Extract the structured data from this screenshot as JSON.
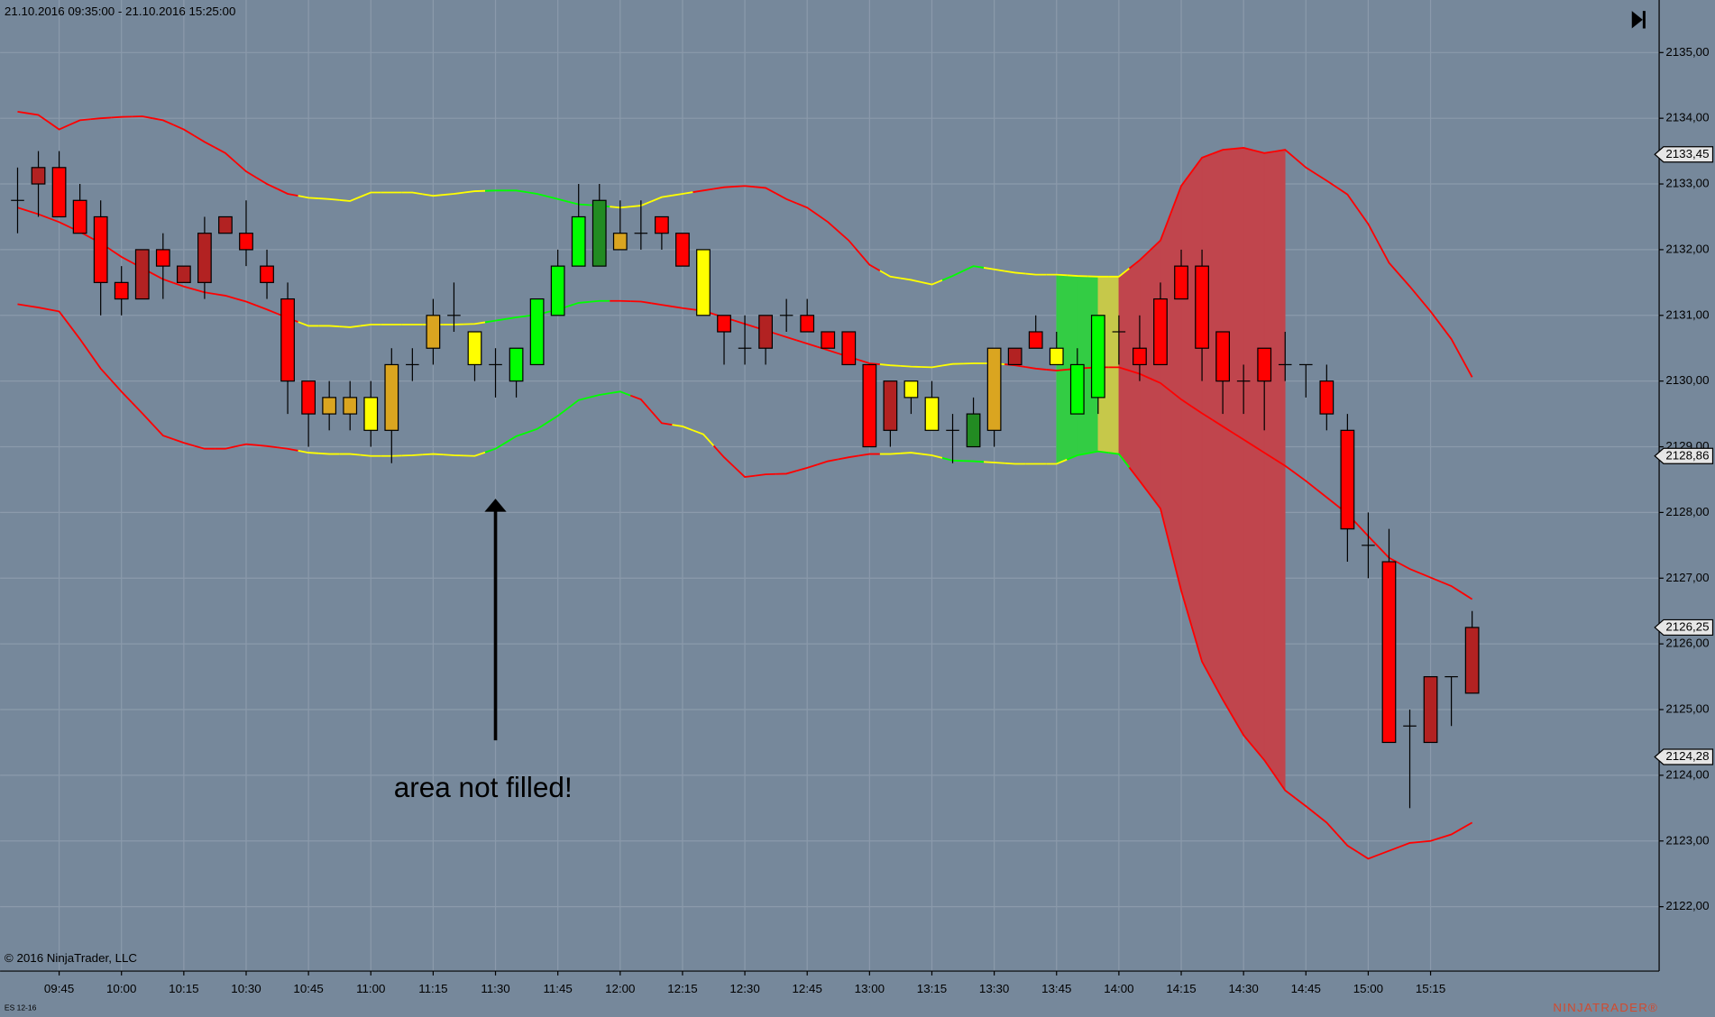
{
  "chart_data": {
    "type": "candlestick",
    "title": "21.10.2016 09:35:00 - 21.10.2016 15:25:00",
    "categories": [
      null,
      null,
      "09:45",
      null,
      null,
      "10:00",
      null,
      null,
      "10:15",
      null,
      null,
      "10:30",
      null,
      null,
      "10:45",
      null,
      null,
      "11:00",
      null,
      null,
      "11:15",
      null,
      null,
      "11:30",
      null,
      null,
      "11:45",
      null,
      null,
      "12:00",
      null,
      null,
      "12:15",
      null,
      null,
      "12:30",
      null,
      null,
      "12:45",
      null,
      null,
      "13:00",
      null,
      null,
      "13:15",
      null,
      null,
      "13:30",
      null,
      null,
      "13:45",
      null,
      null,
      "14:00",
      null,
      null,
      "14:15",
      null,
      null,
      "14:30",
      null,
      null,
      "14:45",
      null,
      null,
      "15:00",
      null,
      null,
      "15:15",
      null,
      null
    ],
    "open": [
      2132.75,
      2133.25,
      2133.25,
      2132.75,
      2132.5,
      2131.5,
      2132.0,
      2132.0,
      2131.75,
      2132.25,
      2132.5,
      2132.25,
      2131.75,
      2131.25,
      2130.0,
      2129.75,
      2129.5,
      2129.75,
      2129.25,
      2130.25,
      2130.5,
      2131.0,
      2130.75,
      2130.25,
      2130.0,
      2130.25,
      2131.0,
      2131.75,
      2131.75,
      2132.25,
      2132.25,
      2132.5,
      2132.25,
      2132.0,
      2131.0,
      2130.5,
      2131.0,
      2131.0,
      2131.0,
      2130.75,
      2130.75,
      2130.25,
      2130.0,
      2130.0,
      2129.75,
      2129.25,
      2129.0,
      2129.25,
      2130.5,
      2130.75,
      2130.5,
      2129.5,
      2129.75,
      2130.75,
      2130.5,
      2131.25,
      2131.75,
      2131.75,
      2130.75,
      2130.0,
      2130.5,
      2130.25,
      2130.25,
      2130.0,
      2129.25,
      2127.5,
      2127.25,
      2124.75,
      2125.5,
      2125.5,
      2126.25
    ],
    "high": [
      2133.25,
      2133.5,
      2133.5,
      2133.0,
      2132.75,
      2131.75,
      2132.0,
      2132.25,
      2131.75,
      2132.5,
      2132.5,
      2132.75,
      2132.0,
      2131.5,
      2130.0,
      2130.0,
      2130.0,
      2130.0,
      2130.5,
      2130.5,
      2131.25,
      2131.5,
      2130.75,
      2130.5,
      2130.5,
      2131.25,
      2132.0,
      2133.0,
      2133.0,
      2132.75,
      2132.75,
      2132.5,
      2132.25,
      2132.0,
      2131.0,
      2131.0,
      2131.0,
      2131.25,
      2131.25,
      2130.75,
      2130.75,
      2130.25,
      2130.0,
      2130.0,
      2130.0,
      2129.5,
      2129.75,
      2130.5,
      2130.5,
      2131.0,
      2130.75,
      2130.5,
      2131.0,
      2131.0,
      2131.0,
      2131.5,
      2132.0,
      2132.0,
      2130.75,
      2130.25,
      2130.5,
      2130.75,
      2130.25,
      2130.25,
      2129.5,
      2128.0,
      2127.75,
      2125.0,
      2125.5,
      2125.5,
      2126.5
    ],
    "low": [
      2132.25,
      2132.5,
      2132.5,
      2132.25,
      2131.0,
      2131.0,
      2131.25,
      2131.25,
      2131.5,
      2131.25,
      2132.25,
      2131.75,
      2131.25,
      2129.5,
      2129.0,
      2129.25,
      2129.25,
      2129.0,
      2128.75,
      2130.0,
      2130.25,
      2130.75,
      2130.0,
      2129.75,
      2129.75,
      2130.25,
      2131.0,
      2131.75,
      2131.75,
      2132.0,
      2132.0,
      2132.0,
      2131.75,
      2131.0,
      2130.25,
      2130.25,
      2130.25,
      2130.75,
      2130.75,
      2130.5,
      2130.25,
      2129.0,
      2129.0,
      2129.5,
      2129.25,
      2128.75,
      2129.0,
      2129.0,
      2130.25,
      2130.5,
      2130.25,
      2129.5,
      2129.5,
      2130.25,
      2130.0,
      2130.25,
      2131.25,
      2130.0,
      2129.5,
      2129.5,
      2129.25,
      2130.0,
      2129.75,
      2129.25,
      2127.25,
      2127.0,
      2124.5,
      2123.5,
      2124.5,
      2124.75,
      2125.25
    ],
    "close": [
      2132.75,
      2133.0,
      2132.5,
      2132.25,
      2131.5,
      2131.25,
      2131.25,
      2131.75,
      2131.5,
      2131.5,
      2132.25,
      2132.0,
      2131.5,
      2130.0,
      2129.5,
      2129.5,
      2129.75,
      2129.25,
      2130.25,
      2130.25,
      2131.0,
      2131.0,
      2130.25,
      2130.25,
      2130.5,
      2131.25,
      2131.75,
      2132.5,
      2132.75,
      2132.0,
      2132.25,
      2132.25,
      2131.75,
      2131.0,
      2130.75,
      2130.5,
      2130.5,
      2131.0,
      2130.75,
      2130.5,
      2130.25,
      2129.0,
      2129.25,
      2129.75,
      2129.25,
      2129.25,
      2129.5,
      2130.5,
      2130.25,
      2130.5,
      2130.25,
      2130.25,
      2131.0,
      2130.75,
      2130.25,
      2130.25,
      2131.25,
      2130.5,
      2130.0,
      2130.0,
      2130.0,
      2130.25,
      2130.25,
      2129.5,
      2127.75,
      2127.5,
      2124.5,
      2124.75,
      2124.5,
      2125.5,
      2125.25
    ],
    "colors": [
      "#000000",
      "#b22222",
      "#ff0000",
      "#ff0000",
      "#ff0000",
      "#ff0000",
      "#b22222",
      "#ff0000",
      "#b22222",
      "#b22222",
      "#b22222",
      "#ff0000",
      "#ff0000",
      "#ff0000",
      "#ff0000",
      "#daa520",
      "#daa520",
      "#ffff00",
      "#daa520",
      "#000000",
      "#daa520",
      "#000000",
      "#ffff00",
      "#000000",
      "#00ff00",
      "#00ff00",
      "#00ff00",
      "#00ff00",
      "#228b22",
      "#daa520",
      "#000000",
      "#ff0000",
      "#ff0000",
      "#ffff00",
      "#ff0000",
      "#000000",
      "#b22222",
      "#000000",
      "#ff0000",
      "#ff0000",
      "#ff0000",
      "#ff0000",
      "#b22222",
      "#ffff00",
      "#ffff00",
      "#000000",
      "#228b22",
      "#daa520",
      "#b22222",
      "#ff0000",
      "#ffff00",
      "#00ff00",
      "#00ff00",
      "#000000",
      "#ff0000",
      "#ff0000",
      "#ff0000",
      "#ff0000",
      "#ff0000",
      "#000000",
      "#ff0000",
      "#000000",
      "#000000",
      "#ff0000",
      "#ff0000",
      "#000000",
      "#ff0000",
      "#000000",
      "#b22222",
      "#000000",
      "#b22222"
    ],
    "bands": [
      {
        "values": [
          2134.1,
          2134.05,
          2133.83,
          2133.97,
          2134.0,
          2134.02,
          2134.03,
          2133.97,
          2133.83,
          2133.64,
          2133.47,
          2133.19,
          2133.0,
          2132.85,
          2132.79,
          2132.77,
          2132.74,
          2132.87,
          2132.87,
          2132.87,
          2132.82,
          2132.85,
          2132.89,
          2132.9,
          2132.9,
          2132.85,
          2132.77,
          2132.69,
          2132.67,
          2132.64,
          2132.67,
          2132.8,
          2132.85,
          2132.9,
          2132.95,
          2132.97,
          2132.94,
          2132.77,
          2132.64,
          2132.42,
          2132.14,
          2131.77,
          2131.59,
          2131.54,
          2131.47,
          2131.6,
          2131.75,
          2131.7,
          2131.65,
          2131.62,
          2131.62,
          2131.6,
          2131.59,
          2131.59,
          2131.84,
          2132.14,
          2132.97,
          2133.4,
          2133.52,
          2133.55,
          2133.47,
          2133.52,
          2133.25,
          2133.05,
          2132.84,
          2132.39,
          2131.8,
          2131.44,
          2131.06,
          2130.64,
          2130.06
        ],
        "colors": [
          "red",
          "red",
          "red",
          "red",
          "red",
          "red",
          "red",
          "red",
          "red",
          "red",
          "red",
          "red",
          "red",
          "red",
          "yellow",
          "yellow",
          "yellow",
          "yellow",
          "yellow",
          "yellow",
          "yellow",
          "yellow",
          "yellow",
          "lime",
          "lime",
          "lime",
          "lime",
          "lime",
          "lime",
          "yellow",
          "yellow",
          "yellow",
          "yellow",
          "red",
          "red",
          "red",
          "red",
          "red",
          "red",
          "red",
          "red",
          "red",
          "yellow",
          "yellow",
          "yellow",
          "lime",
          "lime",
          "yellow",
          "yellow",
          "yellow",
          "yellow",
          "yellow",
          "yellow",
          "yellow",
          "red",
          "red",
          "red",
          "red",
          "red",
          "red",
          "red",
          "red",
          "red",
          "red",
          "red",
          "red",
          "red",
          "red",
          "red",
          "red",
          "red"
        ]
      },
      {
        "values": [
          2132.64,
          2132.54,
          2132.42,
          2132.27,
          2132.1,
          2131.89,
          2131.72,
          2131.55,
          2131.44,
          2131.35,
          2131.3,
          2131.21,
          2131.09,
          2130.96,
          2130.84,
          2130.84,
          2130.82,
          2130.86,
          2130.86,
          2130.86,
          2130.86,
          2130.86,
          2130.87,
          2130.92,
          2130.97,
          2131.01,
          2131.09,
          2131.19,
          2131.22,
          2131.22,
          2131.21,
          2131.16,
          2131.11,
          2131.07,
          2130.97,
          2130.87,
          2130.77,
          2130.67,
          2130.57,
          2130.47,
          2130.37,
          2130.27,
          2130.24,
          2130.22,
          2130.21,
          2130.26,
          2130.27,
          2130.27,
          2130.24,
          2130.19,
          2130.16,
          2130.19,
          2130.21,
          2130.21,
          2130.11,
          2129.97,
          2129.72,
          2129.51,
          2129.31,
          2129.11,
          2128.91,
          2128.71,
          2128.48,
          2128.23,
          2127.98,
          2127.64,
          2127.31,
          2127.14,
          2127.01,
          2126.88,
          2126.68
        ],
        "colors": [
          "red",
          "red",
          "red",
          "red",
          "red",
          "red",
          "red",
          "red",
          "red",
          "red",
          "red",
          "red",
          "red",
          "red",
          "yellow",
          "yellow",
          "yellow",
          "yellow",
          "yellow",
          "yellow",
          "yellow",
          "yellow",
          "yellow",
          "lime",
          "lime",
          "lime",
          "lime",
          "lime",
          "lime",
          "red",
          "red",
          "red",
          "red",
          "red",
          "red",
          "red",
          "red",
          "red",
          "red",
          "red",
          "red",
          "red",
          "yellow",
          "yellow",
          "yellow",
          "yellow",
          "yellow",
          "yellow",
          "red",
          "red",
          "red",
          "red",
          "red",
          "red",
          "red",
          "red",
          "red",
          "red",
          "red",
          "red",
          "red",
          "red",
          "red",
          "red",
          "red",
          "red",
          "red",
          "red",
          "red",
          "red",
          "red"
        ]
      },
      {
        "values": [
          2131.17,
          2131.12,
          2131.06,
          2130.64,
          2130.19,
          2129.84,
          2129.51,
          2129.17,
          2129.06,
          2128.97,
          2128.97,
          2129.04,
          2129.01,
          2128.97,
          2128.91,
          2128.89,
          2128.89,
          2128.86,
          2128.86,
          2128.87,
          2128.89,
          2128.87,
          2128.86,
          2128.97,
          2129.16,
          2129.27,
          2129.47,
          2129.71,
          2129.79,
          2129.84,
          2129.72,
          2129.36,
          2129.31,
          2129.19,
          2128.84,
          2128.54,
          2128.58,
          2128.59,
          2128.68,
          2128.78,
          2128.84,
          2128.89,
          2128.89,
          2128.91,
          2128.87,
          2128.79,
          2128.78,
          2128.76,
          2128.74,
          2128.74,
          2128.74,
          2128.87,
          2128.93,
          2128.89,
          2128.48,
          2128.06,
          2126.81,
          2125.73,
          2125.15,
          2124.61,
          2124.23,
          2123.77,
          2123.53,
          2123.28,
          2122.93,
          2122.73,
          2122.85,
          2122.97,
          2123.0,
          2123.1,
          2123.28
        ],
        "colors": [
          "red",
          "red",
          "red",
          "red",
          "red",
          "red",
          "red",
          "red",
          "red",
          "red",
          "red",
          "red",
          "red",
          "red",
          "yellow",
          "yellow",
          "yellow",
          "yellow",
          "yellow",
          "yellow",
          "yellow",
          "yellow",
          "yellow",
          "lime",
          "lime",
          "lime",
          "lime",
          "lime",
          "lime",
          "lime",
          "red",
          "red",
          "yellow",
          "yellow",
          "red",
          "red",
          "red",
          "red",
          "red",
          "red",
          "red",
          "red",
          "yellow",
          "yellow",
          "yellow",
          "lime",
          "lime",
          "yellow",
          "yellow",
          "yellow",
          "yellow",
          "lime",
          "lime",
          "lime",
          "red",
          "red",
          "red",
          "red",
          "red",
          "red",
          "red",
          "red",
          "red",
          "red",
          "red",
          "red",
          "red",
          "red",
          "red",
          "red",
          "red"
        ]
      }
    ],
    "band_fill_colors": [
      null,
      null,
      null,
      null,
      null,
      null,
      null,
      null,
      null,
      null,
      null,
      null,
      null,
      null,
      null,
      null,
      null,
      null,
      null,
      null,
      null,
      null,
      null,
      null,
      null,
      null,
      null,
      null,
      null,
      null,
      null,
      null,
      null,
      null,
      null,
      null,
      null,
      null,
      null,
      null,
      null,
      null,
      null,
      null,
      null,
      null,
      null,
      null,
      null,
      null,
      "#33cc44",
      "#33cc44",
      "#c6c84a",
      "#c0454d",
      "#c0454d",
      "#c0454d",
      "#c0454d",
      "#c0454d",
      "#c0454d",
      "#c0454d",
      "#c0454d",
      null,
      null,
      null,
      null,
      null,
      null,
      null,
      null,
      null,
      null
    ],
    "ylim": [
      2121.02,
      2135.8
    ],
    "yticks": [
      {
        "value": 2122,
        "label": "2122,00"
      },
      {
        "value": 2123,
        "label": "2123,00"
      },
      {
        "value": 2124,
        "label": "2124,00"
      },
      {
        "value": 2125,
        "label": "2125,00"
      },
      {
        "value": 2126,
        "label": "2126,00"
      },
      {
        "value": 2127,
        "label": "2127,00"
      },
      {
        "value": 2128,
        "label": "2128,00"
      },
      {
        "value": 2129,
        "label": "2129,00"
      },
      {
        "value": 2130,
        "label": "2130,00"
      },
      {
        "value": 2131,
        "label": "2131,00"
      },
      {
        "value": 2132,
        "label": "2132,00"
      },
      {
        "value": 2133,
        "label": "2133,00"
      },
      {
        "value": 2134,
        "label": "2134,00"
      },
      {
        "value": 2135,
        "label": "2135,00"
      }
    ],
    "price_markers": [
      {
        "value": 2133.45,
        "label": "2133,45"
      },
      {
        "value": 2128.86,
        "label": "2128,86"
      },
      {
        "value": 2126.25,
        "label": "2126,25"
      },
      {
        "value": 2124.28,
        "label": "2124,28"
      }
    ],
    "grid": true,
    "annotation": "area not filled!"
  },
  "footer": {
    "copyright": "© 2016 NinjaTrader, LLC",
    "instrument": "ES 12-16",
    "logo": "NINJATRADER®"
  }
}
